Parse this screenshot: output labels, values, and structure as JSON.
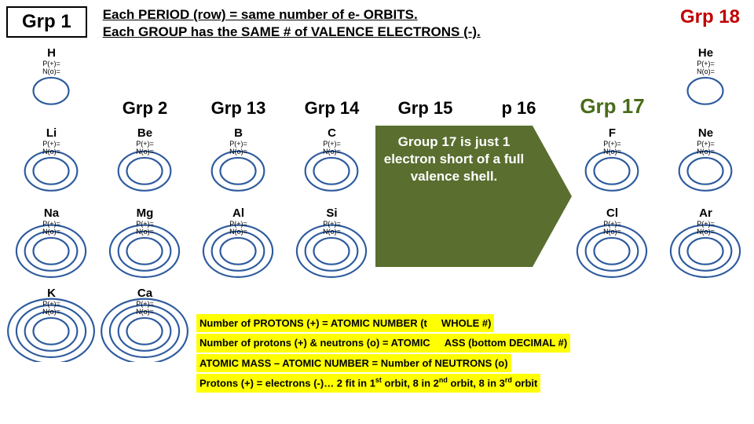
{
  "header": {
    "grp1": "Grp 1",
    "line1": "Each PERIOD (row) = same number of e- ORBITS.",
    "line2": "Each GROUP  has the SAME # of VALENCE  ELECTRONS (-).",
    "grp18": "Grp 18"
  },
  "group_labels": {
    "g2": "Grp 2",
    "g13": "Grp 13",
    "g14": "Grp 14",
    "g15": "Grp 15",
    "g16": "p 16",
    "g17": "Grp 17"
  },
  "pn_label_p": "P(+)=",
  "pn_label_n": "N(o)=",
  "elements": {
    "H": {
      "sym": "H",
      "orbits": 1,
      "row": 0,
      "col": 0
    },
    "He": {
      "sym": "He",
      "orbits": 1,
      "row": 0,
      "col": 7
    },
    "Li": {
      "sym": "Li",
      "orbits": 2,
      "row": 1,
      "col": 0
    },
    "Be": {
      "sym": "Be",
      "orbits": 2,
      "row": 1,
      "col": 1
    },
    "B": {
      "sym": "B",
      "orbits": 2,
      "row": 1,
      "col": 2
    },
    "C": {
      "sym": "C",
      "orbits": 2,
      "row": 1,
      "col": 3
    },
    "F": {
      "sym": "F",
      "orbits": 2,
      "row": 1,
      "col": 6
    },
    "Ne": {
      "sym": "Ne",
      "orbits": 2,
      "row": 1,
      "col": 7
    },
    "Na": {
      "sym": "Na",
      "orbits": 3,
      "row": 2,
      "col": 0
    },
    "Mg": {
      "sym": "Mg",
      "orbits": 3,
      "row": 2,
      "col": 1
    },
    "Al": {
      "sym": "Al",
      "orbits": 3,
      "row": 2,
      "col": 2
    },
    "Si": {
      "sym": "Si",
      "orbits": 3,
      "row": 2,
      "col": 3
    },
    "Cl": {
      "sym": "Cl",
      "orbits": 3,
      "row": 2,
      "col": 6
    },
    "Ar": {
      "sym": "Ar",
      "orbits": 3,
      "row": 2,
      "col": 7
    },
    "K": {
      "sym": "K",
      "orbits": 4,
      "row": 3,
      "col": 0
    },
    "Ca": {
      "sym": "Ca",
      "orbits": 4,
      "row": 3,
      "col": 1
    }
  },
  "callout": "Group 17 is just 1 electron short of a full valence shell.",
  "notes": {
    "n1": "Number of PROTONS (+)  =  ATOMIC NUMBER  (t",
    "n1b": "WHOLE #)",
    "n2": "Number of protons (+) & neutrons (o) = ATOMIC",
    "n2b": "ASS  (bottom DECIMAL #)",
    "n3": "ATOMIC MASS – ATOMIC NUMBER = Number of NEUTRONS (o)",
    "n4a": "Protons (+) = electrons (-)… 2 fit in 1",
    "n4b": " orbit, 8 in 2",
    "n4c": " orbit, 8 in 3",
    "n4d": " orbit"
  },
  "colors": {
    "orbit": "#2e5b9e",
    "callout_bg": "#5a6e2f",
    "highlight": "#ffff00",
    "grp18": "#c00000"
  }
}
